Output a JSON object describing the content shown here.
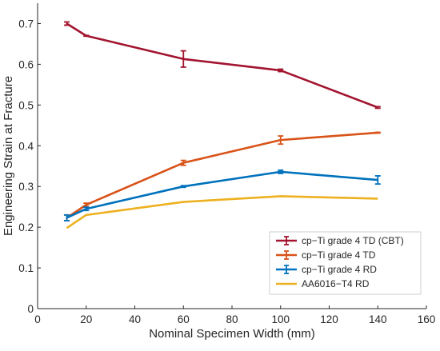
{
  "chart_data": {
    "type": "line",
    "title": "",
    "xlabel": "Nominal Specimen Width (mm)",
    "ylabel": "Engineering Strain at Fracture",
    "xlim": [
      0,
      160
    ],
    "ylim": [
      0,
      0.75
    ],
    "xticks": [
      "0",
      "20",
      "40",
      "60",
      "80",
      "100",
      "120",
      "140",
      "160"
    ],
    "yticks": [
      "0",
      "0.1",
      "0.2",
      "0.3",
      "0.4",
      "0.5",
      "0.6",
      "0.7"
    ],
    "grid": false,
    "legend_position": "bottom-right",
    "series": [
      {
        "name": "cp−Ti grade 4 TD (CBT)",
        "color": "#A2142F",
        "error_bars": true,
        "x": [
          12,
          20,
          60,
          100,
          140
        ],
        "y": [
          0.7,
          0.67,
          0.613,
          0.585,
          0.494
        ],
        "err": [
          0.004,
          0.001,
          0.02,
          0.003,
          0.002
        ]
      },
      {
        "name": "cp−Ti grade 4 TD",
        "color": "#D95319",
        "error_bars": true,
        "x": [
          12,
          20,
          60,
          100,
          140
        ],
        "y": [
          0.223,
          0.255,
          0.358,
          0.414,
          0.432
        ],
        "err": [
          0.007,
          0.004,
          0.006,
          0.01,
          0.001
        ]
      },
      {
        "name": "cp−Ti grade 4 RD",
        "color": "#0072BD",
        "error_bars": true,
        "x": [
          12,
          20,
          60,
          100,
          140
        ],
        "y": [
          0.223,
          0.245,
          0.3,
          0.336,
          0.316
        ],
        "err": [
          0.007,
          0.004,
          0.002,
          0.004,
          0.01
        ]
      },
      {
        "name": "AA6016−T4 RD",
        "color": "#EDB120",
        "error_bars": false,
        "x": [
          12,
          20,
          60,
          100,
          140
        ],
        "y": [
          0.198,
          0.23,
          0.262,
          0.276,
          0.27
        ],
        "err": [
          0,
          0,
          0,
          0,
          0
        ]
      }
    ]
  }
}
